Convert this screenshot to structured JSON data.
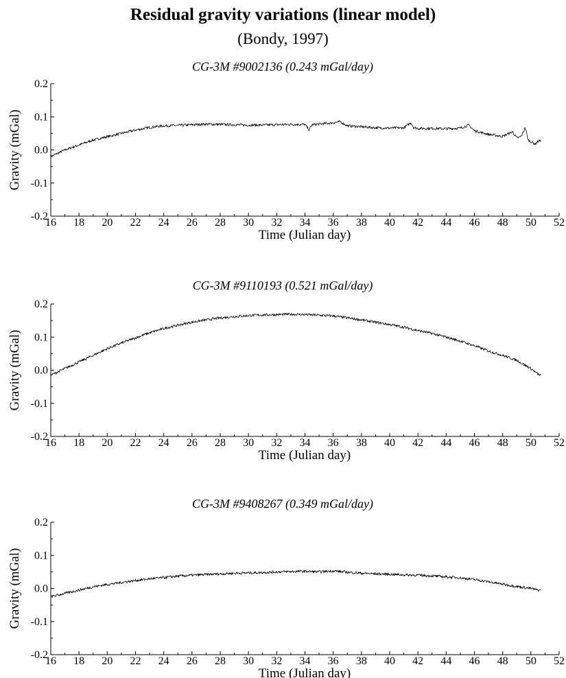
{
  "title": "Residual gravity variations (linear model)",
  "subtitle": "(Bondy, 1997)",
  "chart_data": [
    {
      "type": "line",
      "title": "CG-3M #9002136  (0.243 mGal/day)",
      "xlabel": "Time (Julian day)",
      "ylabel": "Gravity (mGal)",
      "xlim": [
        16,
        52
      ],
      "ylim": [
        -0.2,
        0.2
      ],
      "xticks": [
        "16",
        "18",
        "20",
        "22",
        "24",
        "26",
        "28",
        "30",
        "32",
        "34",
        "36",
        "38",
        "40",
        "42",
        "44",
        "46",
        "48",
        "50",
        "52"
      ],
      "yticks": [
        "0.2",
        "0.1",
        "0.0",
        "-0.1",
        "-0.2"
      ],
      "grid": false,
      "series": [
        {
          "x": [
            16.0,
            17.0,
            18.0,
            19.0,
            20.0,
            21.0,
            22.0,
            23.0,
            24.0,
            25.0,
            26.0,
            27.0,
            28.0,
            29.0,
            30.0,
            31.0,
            32.0,
            33.0,
            34.0,
            34.3,
            34.5,
            35.0,
            36.0,
            36.5,
            37.0,
            38.0,
            39.0,
            40.0,
            41.0,
            41.5,
            41.7,
            42.0,
            43.0,
            44.0,
            45.0,
            45.6,
            46.0,
            47.0,
            48.0,
            48.7,
            49.0,
            49.3,
            49.6,
            49.8,
            50.0,
            50.3,
            50.5,
            50.7
          ],
          "y": [
            -0.02,
            0.0,
            0.015,
            0.03,
            0.04,
            0.05,
            0.06,
            0.068,
            0.073,
            0.074,
            0.076,
            0.078,
            0.077,
            0.076,
            0.075,
            0.075,
            0.076,
            0.077,
            0.077,
            0.06,
            0.076,
            0.078,
            0.082,
            0.085,
            0.073,
            0.07,
            0.067,
            0.066,
            0.067,
            0.082,
            0.068,
            0.065,
            0.065,
            0.064,
            0.066,
            0.075,
            0.058,
            0.047,
            0.041,
            0.055,
            0.036,
            0.04,
            0.068,
            0.03,
            0.025,
            0.018,
            0.026,
            0.028
          ]
        }
      ]
    },
    {
      "type": "line",
      "title": "CG-3M #9110193  (0.521 mGal/day)",
      "xlabel": "Time (Julian day)",
      "ylabel": "Gravity (mGal)",
      "xlim": [
        16,
        52
      ],
      "ylim": [
        -0.2,
        0.2
      ],
      "xticks": [
        "16",
        "18",
        "20",
        "22",
        "24",
        "26",
        "28",
        "30",
        "32",
        "34",
        "36",
        "38",
        "40",
        "42",
        "44",
        "46",
        "48",
        "50",
        "52"
      ],
      "yticks": [
        "0.2",
        "0.1",
        "0.0",
        "-0.1",
        "-0.2"
      ],
      "grid": false,
      "series": [
        {
          "x": [
            16.0,
            17.0,
            18.0,
            19.0,
            20.0,
            21.0,
            22.0,
            23.0,
            24.0,
            25.0,
            26.0,
            27.0,
            28.0,
            29.0,
            30.0,
            31.0,
            32.0,
            33.0,
            34.0,
            35.0,
            36.0,
            37.0,
            38.0,
            39.0,
            40.0,
            41.0,
            42.0,
            43.0,
            44.0,
            45.0,
            46.0,
            47.0,
            48.0,
            49.0,
            50.0,
            50.5,
            50.7
          ],
          "y": [
            -0.015,
            0.005,
            0.025,
            0.045,
            0.065,
            0.082,
            0.098,
            0.113,
            0.126,
            0.136,
            0.145,
            0.152,
            0.158,
            0.162,
            0.165,
            0.167,
            0.168,
            0.169,
            0.168,
            0.166,
            0.164,
            0.158,
            0.152,
            0.145,
            0.138,
            0.13,
            0.12,
            0.111,
            0.1,
            0.088,
            0.074,
            0.058,
            0.045,
            0.03,
            0.005,
            -0.012,
            -0.015
          ]
        }
      ]
    },
    {
      "type": "line",
      "title": "CG-3M #9408267  (0.349 mGal/day)",
      "xlabel": "Time (Julian day)",
      "ylabel": "Gravity (mGal)",
      "xlim": [
        16,
        52
      ],
      "ylim": [
        -0.2,
        0.2
      ],
      "xticks": [
        "16",
        "18",
        "20",
        "22",
        "24",
        "26",
        "28",
        "30",
        "32",
        "34",
        "36",
        "38",
        "40",
        "42",
        "44",
        "46",
        "48",
        "50",
        "52"
      ],
      "yticks": [
        "0.2",
        "0.1",
        "0.0",
        "-0.1",
        "-0.2"
      ],
      "grid": false,
      "series": [
        {
          "x": [
            16.0,
            17.0,
            18.0,
            19.0,
            20.0,
            21.0,
            22.0,
            23.0,
            24.0,
            25.0,
            26.0,
            27.0,
            28.0,
            29.0,
            30.0,
            31.0,
            32.0,
            33.0,
            34.0,
            35.0,
            36.0,
            37.0,
            38.0,
            39.0,
            40.0,
            41.0,
            42.0,
            43.0,
            44.0,
            45.0,
            46.0,
            47.0,
            48.0,
            49.0,
            50.0,
            50.5,
            50.7
          ],
          "y": [
            -0.025,
            -0.015,
            -0.005,
            0.005,
            0.012,
            0.018,
            0.024,
            0.029,
            0.033,
            0.037,
            0.04,
            0.042,
            0.044,
            0.046,
            0.047,
            0.048,
            0.05,
            0.051,
            0.052,
            0.05,
            0.053,
            0.049,
            0.046,
            0.044,
            0.043,
            0.041,
            0.04,
            0.038,
            0.035,
            0.032,
            0.027,
            0.02,
            0.013,
            0.006,
            0.0,
            -0.005,
            -0.005
          ]
        }
      ]
    }
  ]
}
